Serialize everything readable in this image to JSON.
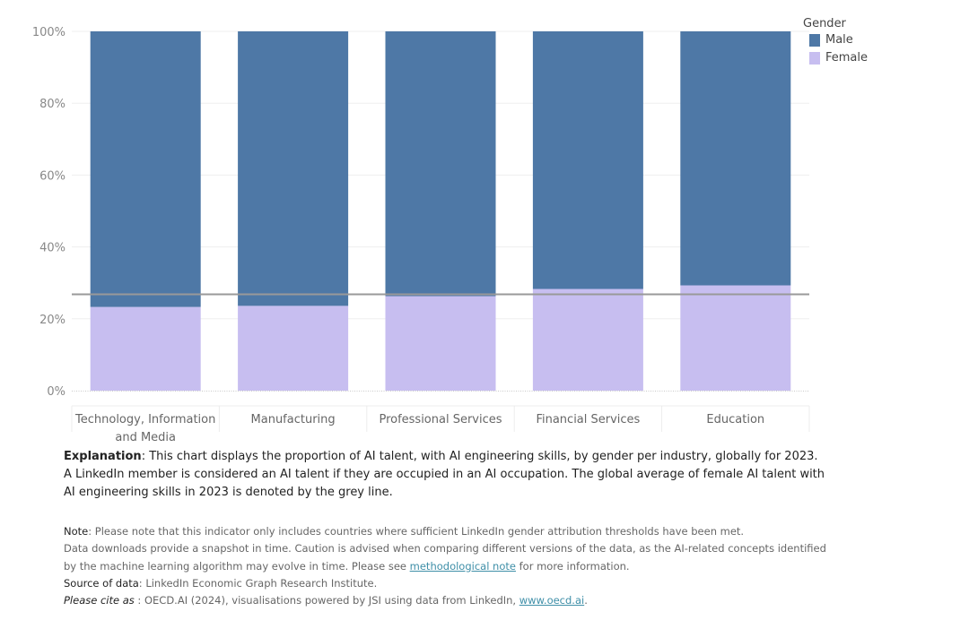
{
  "chart_data": {
    "type": "bar",
    "stacked": true,
    "categories": [
      "Technology, Information and Media",
      "Manufacturing",
      "Professional Services",
      "Financial Services",
      "Education"
    ],
    "category_lines": [
      [
        "Technology, Information",
        "and Media"
      ],
      [
        "Manufacturing"
      ],
      [
        "Professional Services"
      ],
      [
        "Financial Services"
      ],
      [
        "Education"
      ]
    ],
    "series": [
      {
        "name": "Female",
        "values": [
          23.3,
          23.6,
          26.3,
          28.3,
          29.3
        ],
        "color": "#c7bef0"
      },
      {
        "name": "Male",
        "values": [
          76.7,
          76.4,
          73.7,
          71.7,
          70.7
        ],
        "color": "#4e78a6"
      }
    ],
    "reference_line": {
      "value": 26.8,
      "color": "#999999"
    },
    "ylim": [
      0,
      100
    ],
    "y_ticks": [
      "0%",
      "20%",
      "40%",
      "60%",
      "80%",
      "100%"
    ],
    "legend": {
      "title": "Gender",
      "position": "top-right",
      "items": [
        {
          "label": "Male",
          "color": "#4e78a6"
        },
        {
          "label": "Female",
          "color": "#c7bef0"
        }
      ]
    }
  },
  "explanation": {
    "label": "Explanation",
    "text": ": This chart displays the proportion of AI talent, with AI engineering skills, by gender per industry, globally for 2023. A LinkedIn member is considered an AI talent if they are occupied in an AI occupation. The global average of female AI talent with AI engineering skills in 2023 is denoted by the grey line."
  },
  "notes": {
    "note_label": "Note",
    "note_text": ": Please note that this indicator only includes countries where sufficient LinkedIn gender attribution thresholds have been met.",
    "downloads_text": "Data downloads provide a snapshot in time. Caution is advised when comparing different versions of the data, as the AI-related concepts identified",
    "downloads_text2_pre": "by the machine learning algorithm may evolve in time. Please see ",
    "methodological_link": "methodological note",
    "downloads_text2_post": " for more information.",
    "source_label": "Source of data",
    "source_text": ": LinkedIn Economic Graph Research Institute.",
    "cite_label": "Please cite as",
    "cite_text": " : OECD.AI (2024), visualisations powered by JSI using data from LinkedIn, ",
    "cite_link": "www.oecd.ai",
    "cite_end": "."
  }
}
